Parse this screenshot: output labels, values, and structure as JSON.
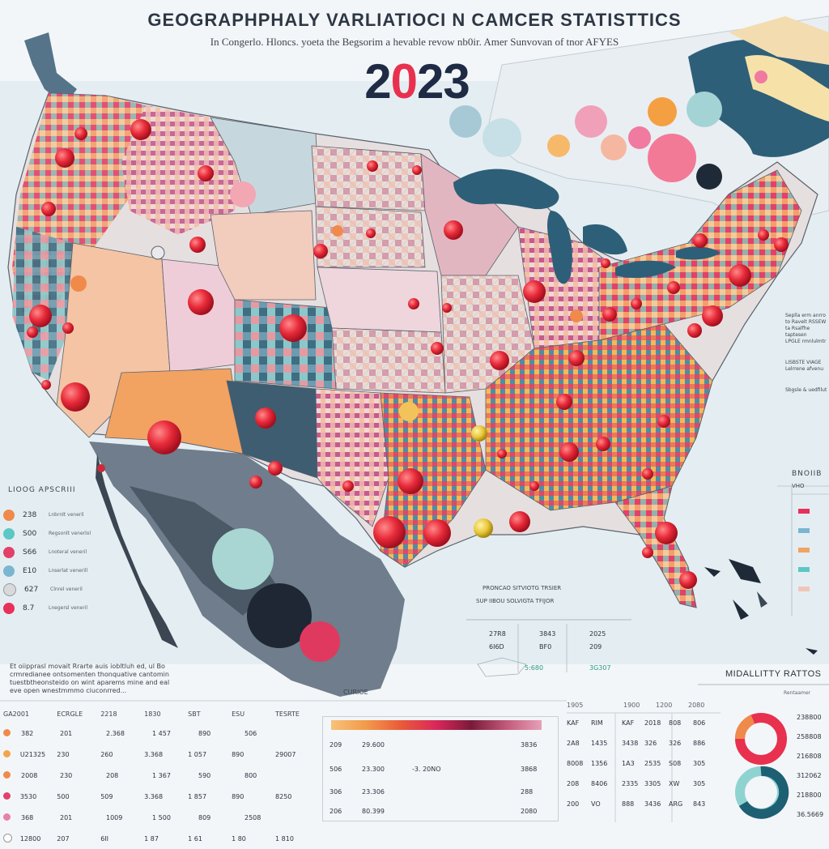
{
  "header": {
    "title": "GEOGRAPHPHALY VARLIATIOCI N CAMCER STATISTTICS",
    "subtitle": "In Congerlo. Hloncs. yoeta the Begsorim a hevable revow nb0ir. Amer Sunvovan of tnor AFYES",
    "year_prefix": "2",
    "year_o": "0",
    "year_suffix": "23"
  },
  "legend": {
    "title": "LIOOG APSCRIII",
    "items": [
      {
        "value": "238",
        "desc": "Lnbrnlt veneril",
        "color": "#f08a4a"
      },
      {
        "value": "S00",
        "desc": "Regsonlt venerlol",
        "color": "#5cc7c4"
      },
      {
        "value": "S66",
        "desc": "Lnoteral veneril",
        "color": "#e3406a"
      },
      {
        "value": "E10",
        "desc": "Lnserlat venerill",
        "color": "#7ab6d1"
      },
      {
        "value": "627",
        "desc": "Clnrel veneril",
        "color": "#d7d9dc"
      },
      {
        "value": "8.7",
        "desc": "Lnegersl veneril",
        "color": "#e8305a"
      }
    ]
  },
  "blurb": {
    "text": "Et oiipprasl movait Rrarte auis iobltluh ed, ul Bo crmredianee ontsomenten thonquative cantomin tuestbtheonsteido on wint aparems mine and eal eve open wnestmmmo ciuconrred..."
  },
  "source": {
    "label": "CURIOE"
  },
  "table": {
    "headers": [
      "GA2001",
      "ECRGLE",
      "2218",
      "1830",
      "SBT",
      "ESU",
      "TESRTE"
    ],
    "rows": [
      {
        "color": "#f08a4a",
        "cells": [
          "382",
          "201",
          "2.368",
          "1 457",
          "890",
          "506"
        ]
      },
      {
        "color": "#f5a44a",
        "cells": [
          "U21325",
          "230",
          "260",
          "3.368",
          "1 057",
          "890",
          "29007"
        ]
      },
      {
        "color": "#f08a4a",
        "cells": [
          "2008",
          "230",
          "208",
          "1 367",
          "590",
          "800"
        ]
      },
      {
        "color": "#e3406a",
        "cells": [
          "3530",
          "500",
          "509",
          "3.368",
          "1 857",
          "890",
          "8250"
        ]
      },
      {
        "color": "#e880a8",
        "cells": [
          "368",
          "201",
          "1009",
          "1 500",
          "809",
          "2508"
        ]
      },
      {
        "color": "#ffffff",
        "cells": [
          "12800",
          "207",
          "6II",
          "1 87",
          "1 61",
          "1 80",
          "1 810"
        ]
      }
    ]
  },
  "mid_table": {
    "rows": [
      {
        "a": "209",
        "b": "29.600",
        "c": "",
        "d": "3836"
      },
      {
        "a": "506",
        "b": "23.300",
        "c": "-3. 20NO",
        "d": "3868"
      },
      {
        "a": "306",
        "b": "23.306",
        "c": "",
        "d": "288"
      },
      {
        "a": "206",
        "b": "80.399",
        "c": "",
        "d": "2080"
      }
    ]
  },
  "right_table": {
    "headers": [
      "1905",
      "1900",
      "1200",
      "2080"
    ],
    "rows": [
      [
        "KAF",
        "RIM",
        "KAF",
        "2018",
        "808",
        "806"
      ],
      [
        "2A8",
        "1435",
        "3438",
        "326",
        "326",
        "886"
      ],
      [
        "8008",
        "1356",
        "1A3",
        "2535",
        "S08",
        "305"
      ],
      [
        "208",
        "8406",
        "2335",
        "3305",
        "XW",
        "305"
      ],
      [
        "200",
        "VO",
        "888",
        "3436",
        "ARG",
        "843"
      ]
    ]
  },
  "ratios": {
    "title": "MIDALLITTY RATTOS",
    "subtitle": "Rentaamer",
    "values": [
      "238800",
      "258808",
      "216808",
      "312062",
      "218800",
      "36.5669"
    ],
    "ring1_colors": [
      "#e8304f",
      "#f08a4a"
    ],
    "ring2_colors": [
      "#1d5f73",
      "#8fd3d0"
    ]
  },
  "mid_stats": {
    "heading_1": "PRONCAO SITVIOTG TRSIER",
    "heading_2": "SUP IIBOU SOLVIGTA TFIJOR",
    "v1": "27R8",
    "v2": "3843",
    "v3": "2025",
    "v4": "6I6D",
    "v5": "BF0",
    "v6": "209",
    "v7": "5:680",
    "v8": "3G307"
  },
  "right_notes": {
    "n1": "Seplla erm anrro",
    "n2": "to Ravelt RSSEW",
    "n3": "ta Rsalfhe taptesen",
    "n4": "LPGLE rmnlulmtr",
    "n5": "LISBSTE VIAGE",
    "n6": "Lelrrene afvenu",
    "n7": "Sbgsle & uedfilut",
    "n8": "BNOIIB",
    "n9": "VHO"
  }
}
